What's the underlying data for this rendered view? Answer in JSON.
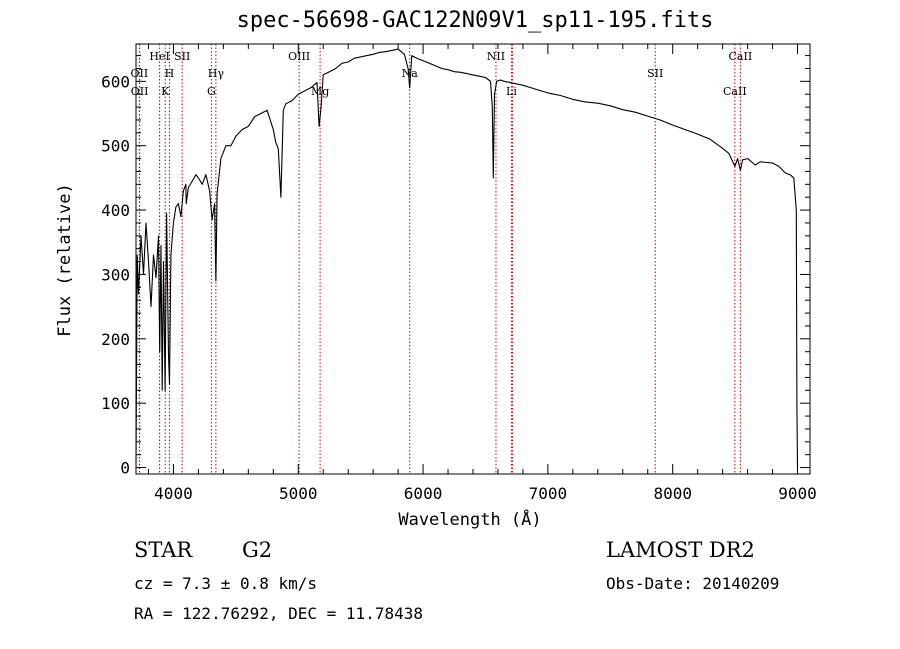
{
  "chart_data": {
    "type": "line",
    "title": "spec-56698-GAC122N09V1_sp11-195.fits",
    "xlabel": "Wavelength (Å)",
    "ylabel": "Flux (relative)",
    "xlim": [
      3700,
      9100
    ],
    "ylim": [
      -10,
      658
    ],
    "xticks": [
      4000,
      5000,
      6000,
      7000,
      8000,
      9000
    ],
    "yticks": [
      0,
      100,
      200,
      300,
      400,
      500,
      600
    ],
    "grid": false,
    "series": [
      {
        "name": "flux",
        "x": [
          3700,
          3710,
          3720,
          3740,
          3760,
          3780,
          3800,
          3820,
          3840,
          3860,
          3880,
          3890,
          3900,
          3910,
          3920,
          3933,
          3945,
          3960,
          3968,
          3980,
          4000,
          4020,
          4040,
          4060,
          4080,
          4100,
          4102,
          4120,
          4150,
          4180,
          4200,
          4230,
          4260,
          4290,
          4310,
          4330,
          4340,
          4350,
          4380,
          4420,
          4460,
          4500,
          4550,
          4600,
          4650,
          4700,
          4750,
          4800,
          4820,
          4840,
          4861,
          4880,
          4900,
          4950,
          5000,
          5050,
          5100,
          5150,
          5167,
          5183,
          5200,
          5250,
          5300,
          5350,
          5400,
          5450,
          5500,
          5550,
          5600,
          5650,
          5700,
          5750,
          5800,
          5850,
          5880,
          5893,
          5910,
          5950,
          6000,
          6050,
          6100,
          6150,
          6200,
          6250,
          6300,
          6350,
          6400,
          6450,
          6500,
          6540,
          6555,
          6563,
          6572,
          6590,
          6620,
          6650,
          6700,
          6750,
          6800,
          6900,
          7000,
          7100,
          7200,
          7300,
          7400,
          7500,
          7600,
          7700,
          7800,
          7900,
          8000,
          8100,
          8200,
          8300,
          8400,
          8450,
          8498,
          8520,
          8542,
          8560,
          8600,
          8662,
          8700,
          8800,
          8850,
          8900,
          8940,
          8970,
          8990,
          8995,
          9000
        ],
        "values": [
          5,
          330,
          270,
          360,
          300,
          380,
          320,
          250,
          330,
          295,
          360,
          180,
          345,
          120,
          320,
          120,
          395,
          175,
          130,
          330,
          380,
          405,
          410,
          390,
          430,
          440,
          410,
          435,
          445,
          455,
          450,
          440,
          455,
          430,
          385,
          410,
          290,
          425,
          480,
          500,
          500,
          515,
          525,
          530,
          545,
          550,
          555,
          525,
          505,
          495,
          420,
          555,
          565,
          570,
          580,
          585,
          590,
          598,
          530,
          560,
          610,
          615,
          620,
          628,
          630,
          636,
          638,
          640,
          642,
          645,
          646,
          648,
          650,
          642,
          620,
          590,
          640,
          636,
          632,
          628,
          624,
          620,
          618,
          615,
          614,
          612,
          610,
          608,
          606,
          600,
          560,
          450,
          580,
          600,
          602,
          600,
          598,
          596,
          594,
          588,
          582,
          578,
          572,
          568,
          566,
          562,
          556,
          552,
          546,
          540,
          532,
          525,
          518,
          510,
          496,
          488,
          468,
          480,
          462,
          478,
          480,
          470,
          475,
          473,
          468,
          458,
          455,
          450,
          400,
          100,
          0
        ]
      }
    ],
    "lines": [
      {
        "label": "OII",
        "wavelength": 3727,
        "row": "upper"
      },
      {
        "label": "OII",
        "wavelength": 3729,
        "row": "lower"
      },
      {
        "label": "HeI",
        "wavelength": 3889,
        "row": "top"
      },
      {
        "label": "H",
        "wavelength": 3968,
        "row": "upper"
      },
      {
        "label": "K",
        "wavelength": 3934,
        "row": "lower"
      },
      {
        "label": "SII",
        "wavelength": 4070,
        "row": "top"
      },
      {
        "label": "Hγ",
        "wavelength": 4340,
        "row": "upper"
      },
      {
        "label": "G",
        "wavelength": 4304,
        "row": "lower"
      },
      {
        "label": "OIII",
        "wavelength": 5007,
        "row": "top"
      },
      {
        "label": "Mg",
        "wavelength": 5175,
        "row": "lower"
      },
      {
        "label": "Na",
        "wavelength": 5893,
        "row": "upper"
      },
      {
        "label": "NII",
        "wavelength": 6584,
        "row": "top"
      },
      {
        "label": "Li",
        "wavelength": 6708,
        "row": "lower"
      },
      {
        "label": "SII",
        "wavelength": 6717,
        "row": "upper",
        "hidden": true
      },
      {
        "label": "SII",
        "wavelength": 7860,
        "row": "upper"
      },
      {
        "label": "CaII",
        "wavelength": 8542,
        "row": "top"
      },
      {
        "label": "CaII",
        "wavelength": 8498,
        "row": "lower"
      }
    ],
    "annotations": {
      "class": "STAR",
      "subclass": "G2",
      "survey": "LAMOST DR2",
      "cz": "cz = 7.3 ± 0.8 km/s",
      "obs_date": "Obs-Date: 20140209",
      "coords": "RA = 122.76292, DEC =  11.78438"
    },
    "colors": {
      "spectrum": "#000000",
      "marker": "#cc0000"
    }
  }
}
